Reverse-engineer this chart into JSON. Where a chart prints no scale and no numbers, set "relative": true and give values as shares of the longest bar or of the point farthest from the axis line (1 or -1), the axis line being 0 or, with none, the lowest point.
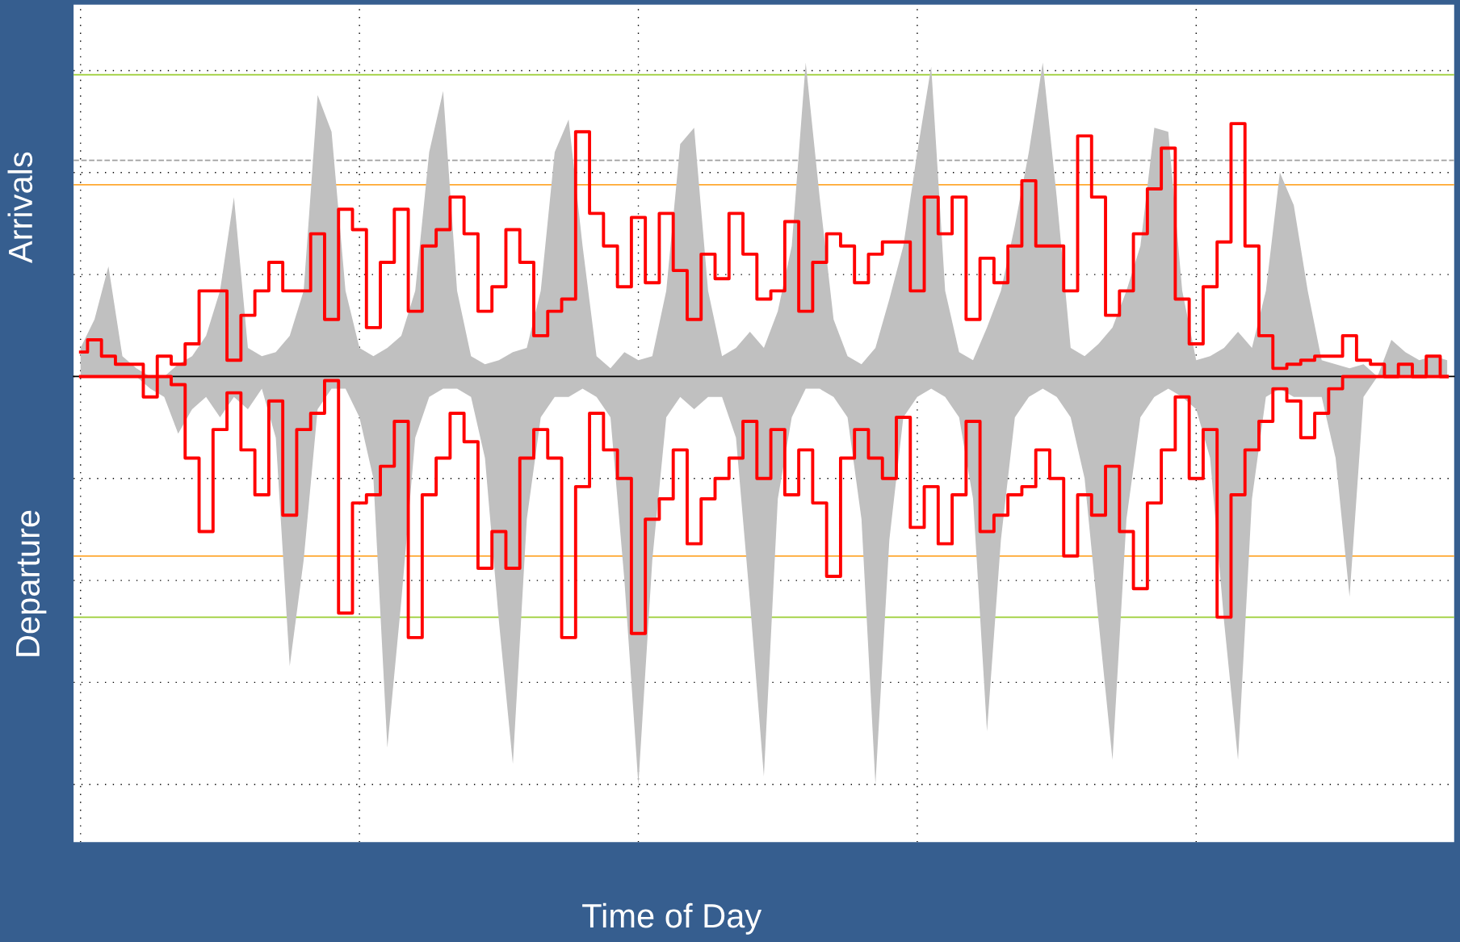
{
  "chart_data": {
    "type": "area",
    "relative": true,
    "xlabel": "Time of Day",
    "ylabel": "Arrivals",
    "annotations": [
      "Departure"
    ],
    "categories": [
      null,
      null,
      null,
      null,
      null,
      null,
      null,
      null,
      null,
      null,
      null,
      null,
      null,
      null,
      null,
      null,
      null,
      null,
      null,
      null,
      null,
      null,
      null,
      null,
      null,
      null,
      null,
      null,
      null,
      null,
      null,
      null,
      null,
      null,
      null,
      null,
      null,
      null,
      null,
      null,
      null,
      null,
      null,
      null,
      null,
      null,
      null,
      null,
      null,
      null,
      null,
      null,
      null,
      null,
      null,
      null,
      null,
      null,
      null,
      null,
      null,
      null,
      null,
      null,
      null,
      null,
      null,
      null,
      null,
      null,
      null,
      null,
      null,
      null,
      null,
      null,
      null,
      null,
      null,
      null,
      null,
      null,
      null,
      null,
      null,
      null,
      null,
      null,
      null,
      null,
      null,
      null,
      null,
      null,
      null,
      null,
      null,
      null,
      null
    ],
    "series": [
      {
        "color": "#c0c0c0",
        "values": [
          0.07,
          0.14,
          0.27,
          0.05,
          0.02,
          0,
          0,
          0.03,
          0.05,
          0.1,
          0.21,
          0.44,
          0.07,
          0.05,
          0.06,
          0.1,
          0.21,
          0.69,
          0.6,
          0.21,
          0.07,
          0.05,
          0.07,
          0.1,
          0.21,
          0.55,
          0.7,
          0.21,
          0.05,
          0.03,
          0.04,
          0.06,
          0.07,
          0.21,
          0.55,
          0.63,
          0.32,
          0.05,
          0.02,
          0.06,
          0.04,
          0.05,
          0.21,
          0.57,
          0.61,
          0.21,
          0.05,
          0.07,
          0.11,
          0.07,
          0.16,
          0.32,
          0.77,
          0.44,
          0.14,
          0.05,
          0.03,
          0.07,
          0.19,
          0.32,
          0.55,
          0.76,
          0.21,
          0.06,
          0.04,
          0.12,
          0.21,
          0.37,
          0.55,
          0.77,
          0.44,
          0.07,
          0.05,
          0.08,
          0.12,
          0.21,
          0.32,
          0.61,
          0.6,
          0.21,
          0.04,
          0.05,
          0.07,
          0.11,
          0.07,
          0.21,
          0.5,
          0.42,
          0.21,
          0.04,
          0.03,
          0.02,
          0.03,
          0,
          0.09,
          0.06,
          0.04,
          0.05,
          0.04
        ]
      },
      {
        "color": "#c0c0c0",
        "values": [
          0,
          0,
          0,
          0,
          0,
          -0.03,
          -0.05,
          -0.14,
          -0.08,
          -0.05,
          -0.1,
          -0.05,
          -0.08,
          -0.03,
          -0.15,
          -0.71,
          -0.45,
          -0.08,
          -0.03,
          -0.03,
          -0.1,
          -0.25,
          -0.91,
          -0.55,
          -0.15,
          -0.05,
          -0.03,
          -0.03,
          -0.05,
          -0.2,
          -0.6,
          -0.95,
          -0.35,
          -0.1,
          -0.05,
          -0.05,
          -0.03,
          -0.05,
          -0.1,
          -0.5,
          -1.0,
          -0.45,
          -0.1,
          -0.05,
          -0.08,
          -0.05,
          -0.05,
          -0.15,
          -0.55,
          -0.98,
          -0.3,
          -0.1,
          -0.03,
          -0.03,
          -0.05,
          -0.1,
          -0.35,
          -1.0,
          -0.4,
          -0.1,
          -0.05,
          -0.03,
          -0.05,
          -0.1,
          -0.3,
          -0.87,
          -0.4,
          -0.1,
          -0.05,
          -0.03,
          -0.05,
          -0.1,
          -0.25,
          -0.6,
          -0.94,
          -0.35,
          -0.1,
          -0.05,
          -0.03,
          -0.05,
          -0.08,
          -0.2,
          -0.6,
          -0.94,
          -0.3,
          -0.05,
          -0.03,
          -0.05,
          -0.05,
          -0.05,
          -0.2,
          -0.54,
          -0.05,
          0,
          0,
          0,
          0,
          0,
          0
        ]
      },
      {
        "type": "step",
        "color": "#ff0000",
        "values": [
          0.06,
          0.09,
          0.05,
          0.03,
          0.03,
          0,
          0.05,
          0.03,
          0.08,
          0.21,
          0.21,
          0.04,
          0.15,
          0.21,
          0.28,
          0.21,
          0.21,
          0.35,
          0.14,
          0.41,
          0.36,
          0.12,
          0.28,
          0.41,
          0.16,
          0.32,
          0.36,
          0.44,
          0.35,
          0.16,
          0.22,
          0.36,
          0.28,
          0.1,
          0.16,
          0.19,
          0.6,
          0.4,
          0.32,
          0.22,
          0.39,
          0.23,
          0.4,
          0.26,
          0.14,
          0.3,
          0.24,
          0.4,
          0.3,
          0.19,
          0.21,
          0.38,
          0.16,
          0.28,
          0.35,
          0.32,
          0.23,
          0.3,
          0.33,
          0.33,
          0.21,
          0.44,
          0.35,
          0.44,
          0.14,
          0.29,
          0.23,
          0.32,
          0.48,
          0.32,
          0.32,
          0.21,
          0.59,
          0.44,
          0.15,
          0.21,
          0.35,
          0.46,
          0.56,
          0.19,
          0.08,
          0.22,
          0.33,
          0.62,
          0.32,
          0.1,
          0.02,
          0.03,
          0.04,
          0.05,
          0.05,
          0.1,
          0.04,
          0.03,
          0,
          0.03,
          0,
          0.05,
          0
        ]
      },
      {
        "type": "step",
        "color": "#ff0000",
        "values": [
          0,
          0,
          0,
          0,
          0,
          -0.05,
          0,
          -0.02,
          -0.2,
          -0.38,
          -0.13,
          -0.04,
          -0.18,
          -0.29,
          -0.06,
          -0.34,
          -0.13,
          -0.09,
          -0.01,
          -0.58,
          -0.31,
          -0.29,
          -0.22,
          -0.11,
          -0.64,
          -0.29,
          -0.2,
          -0.09,
          -0.16,
          -0.47,
          -0.38,
          -0.47,
          -0.2,
          -0.13,
          -0.2,
          -0.64,
          -0.27,
          -0.09,
          -0.18,
          -0.25,
          -0.63,
          -0.35,
          -0.3,
          -0.18,
          -0.41,
          -0.3,
          -0.25,
          -0.2,
          -0.11,
          -0.25,
          -0.13,
          -0.29,
          -0.18,
          -0.31,
          -0.49,
          -0.2,
          -0.13,
          -0.2,
          -0.25,
          -0.1,
          -0.37,
          -0.27,
          -0.41,
          -0.29,
          -0.11,
          -0.38,
          -0.34,
          -0.29,
          -0.27,
          -0.18,
          -0.25,
          -0.44,
          -0.29,
          -0.34,
          -0.22,
          -0.38,
          -0.52,
          -0.31,
          -0.18,
          -0.05,
          -0.25,
          -0.13,
          -0.59,
          -0.29,
          -0.18,
          -0.11,
          -0.03,
          -0.06,
          -0.15,
          -0.09,
          -0.03,
          0,
          0,
          0,
          0,
          0,
          0,
          0,
          0
        ]
      }
    ],
    "ref_lines": [
      {
        "axis": "y",
        "value": 0.74,
        "color": "#9acd32",
        "line_style": "solid"
      },
      {
        "axis": "y",
        "value": 0.53,
        "color": "#a0a0a0",
        "line_style": "dashed"
      },
      {
        "axis": "y",
        "value": 0.47,
        "color": "#ffa830",
        "line_style": "solid"
      },
      {
        "axis": "y",
        "value": -0.44,
        "color": "#ffa830",
        "line_style": "solid"
      },
      {
        "axis": "y",
        "value": -0.59,
        "color": "#9acd32",
        "line_style": "solid"
      }
    ],
    "grid": true,
    "tick_labels": false,
    "legend": false
  }
}
